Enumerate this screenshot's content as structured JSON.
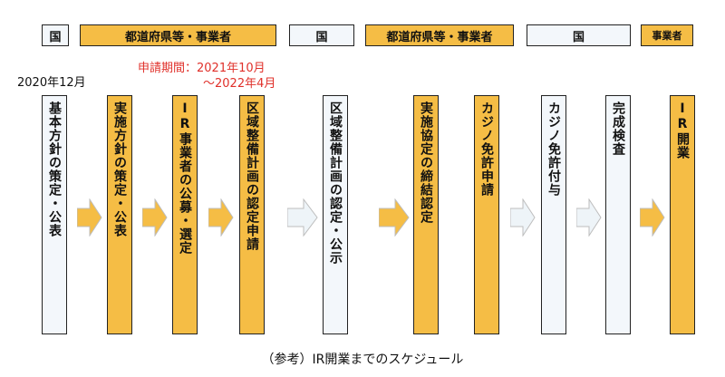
{
  "header_row": [
    {
      "label": "国",
      "kind": "gov"
    },
    {
      "label": "都道府県等・事業者",
      "kind": "biz"
    },
    {
      "label": "国",
      "kind": "gov"
    },
    {
      "label": "都道府県等・事業者",
      "kind": "biz"
    },
    {
      "label": "国",
      "kind": "gov"
    },
    {
      "label": "事業者",
      "kind": "biz"
    }
  ],
  "notes": {
    "start_date": "2020年12月",
    "application_period_line1": "申請期間：2021年10月",
    "application_period_line2": "～2022年4月"
  },
  "steps": [
    {
      "label": "基本方針の策定・公表",
      "kind": "gov"
    },
    {
      "label": "実施方針の策定・公表",
      "kind": "biz"
    },
    {
      "label": "IR事業者の公募・選定",
      "kind": "biz"
    },
    {
      "label": "区域整備計画の認定申請",
      "kind": "biz"
    },
    {
      "label": "区域整備計画の認定・公示",
      "kind": "gov"
    },
    {
      "label": "実施協定の締結認定",
      "kind": "biz"
    },
    {
      "label": "カジノ免許申請",
      "kind": "biz"
    },
    {
      "label": "カジノ免許付与",
      "kind": "gov"
    },
    {
      "label": "完成検査",
      "kind": "gov"
    },
    {
      "label": "IR開業",
      "kind": "biz"
    }
  ],
  "colors": {
    "business": "#f5bd45",
    "government": "#f3f7fb",
    "period_text": "#e0302a"
  },
  "caption": "（参考）IR開業までのスケジュール"
}
